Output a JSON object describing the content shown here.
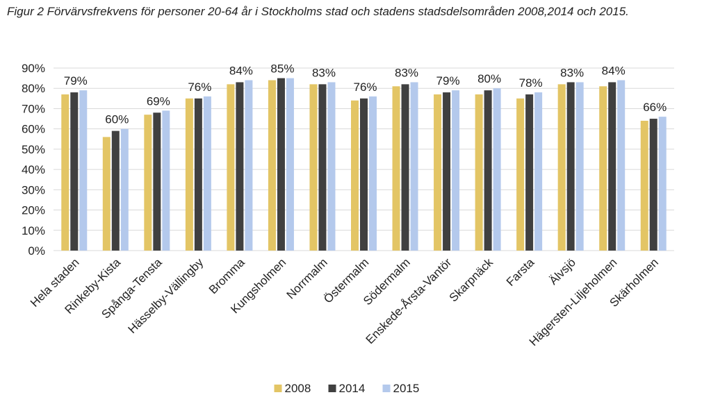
{
  "chart_data": {
    "type": "bar",
    "title": "Figur 2 Förvärvsfrekvens för personer 20-64 år i Stockholms stad och stadens stadsdelsområden 2008,2014 och 2015.",
    "categories": [
      "Hela staden",
      "Rinkeby-Kista",
      "Spånga-Tensta",
      "Hässelby-Vällingby",
      "Bromma",
      "Kungsholmen",
      "Norrmalm",
      "Östermalm",
      "Södermalm",
      "Enskede-Årsta-Vantör",
      "Skarpnäck",
      "Farsta",
      "Älvsjö",
      "Hägersten-Liljeholmen",
      "Skärholmen"
    ],
    "series": [
      {
        "name": "2008",
        "color": "#E3C565",
        "values": [
          77,
          56,
          67,
          75,
          82,
          84,
          82,
          74,
          81,
          77,
          77,
          75,
          82,
          81,
          64
        ]
      },
      {
        "name": "2014",
        "color": "#404040",
        "values": [
          78,
          59,
          68,
          75,
          83,
          85,
          82,
          75,
          82,
          78,
          79,
          77,
          83,
          83,
          65
        ]
      },
      {
        "name": "2015",
        "color": "#B4C9EC",
        "values": [
          79,
          60,
          69,
          76,
          84,
          85,
          83,
          76,
          83,
          79,
          80,
          78,
          83,
          84,
          66
        ]
      }
    ],
    "data_labels": [
      "79%",
      "60%",
      "69%",
      "76%",
      "84%",
      "85%",
      "83%",
      "76%",
      "83%",
      "79%",
      "80%",
      "78%",
      "83%",
      "84%",
      "66%"
    ],
    "y_ticks": [
      "0%",
      "10%",
      "20%",
      "30%",
      "40%",
      "50%",
      "60%",
      "70%",
      "80%",
      "90%"
    ],
    "ylim": [
      0,
      90
    ],
    "grid": true,
    "legend": "bottom",
    "gridline_color": "#D9D9D9"
  }
}
